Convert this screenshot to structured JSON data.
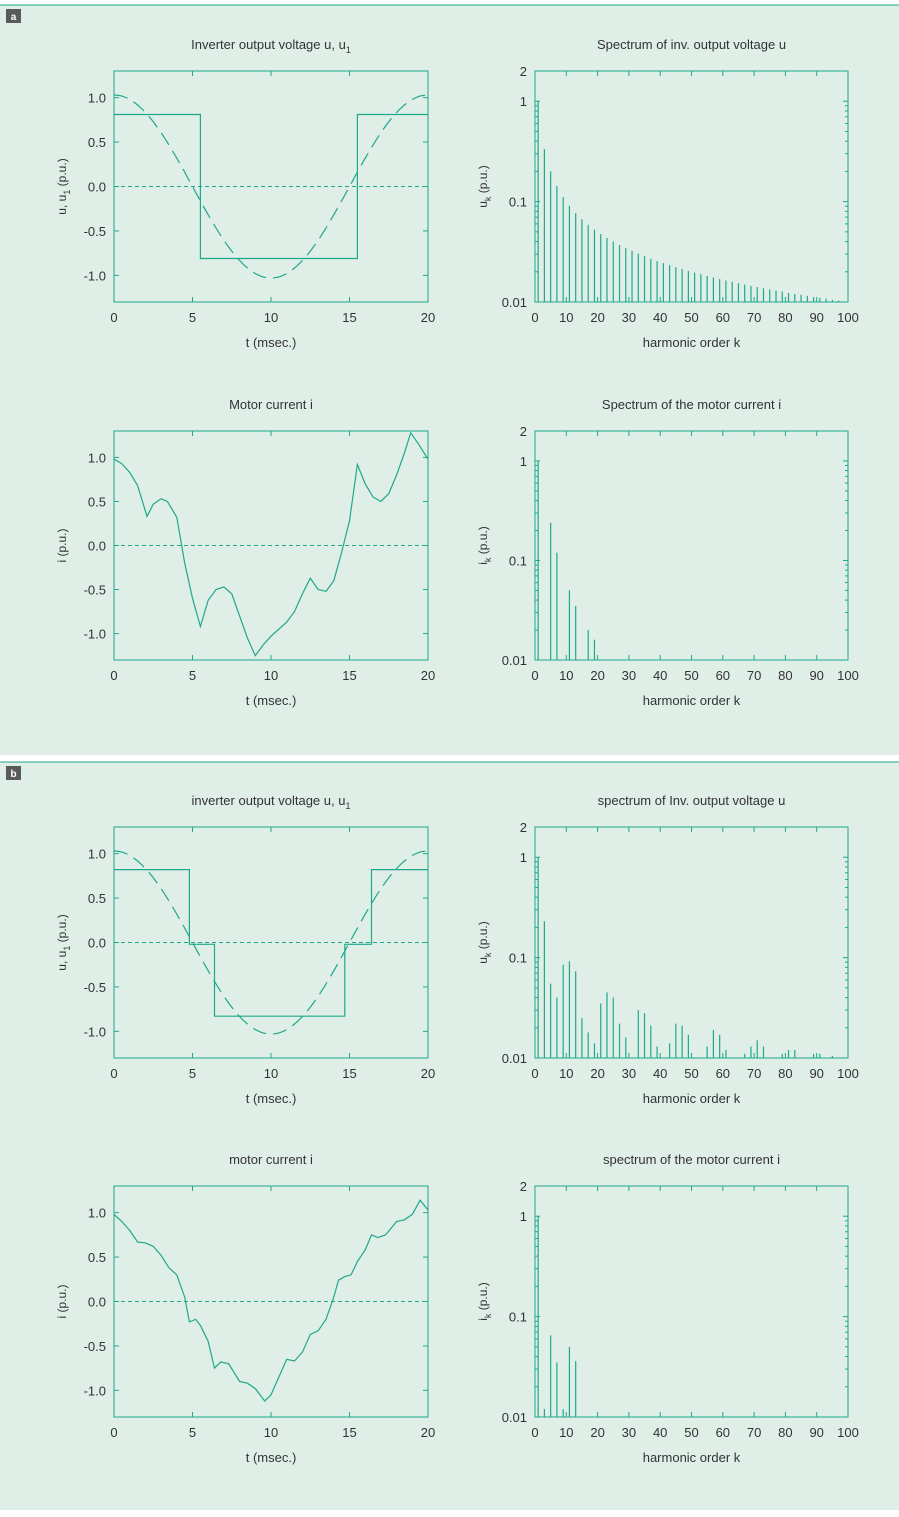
{
  "colors": {
    "background": "#dfeee7",
    "line": "#1fa88c",
    "text": "#333333",
    "tag_bg": "#5a5a5a",
    "tag_text": "#ffffff"
  },
  "panels": [
    {
      "tag": "a"
    },
    {
      "tag": "b"
    }
  ],
  "chart_data": [
    {
      "panel": "a",
      "type": "line",
      "title": "Inverter output voltage u, u",
      "title_sub": "1",
      "xlabel": "t (msec.)",
      "ylabel": "u, u",
      "ylabel_sub": "1",
      "ylabel_suffix": " (p.u.)",
      "xlim": [
        0,
        20
      ],
      "ylim": [
        -1.3,
        1.3
      ],
      "xticks": [
        0,
        5,
        10,
        15,
        20
      ],
      "yticks": [
        1.0,
        0.5,
        0.0,
        -0.5,
        -1.0
      ],
      "ytick_labels": [
        "1.0",
        "0.5",
        "0.0",
        "-0.5",
        "-1.0"
      ],
      "series": [
        {
          "style": "solid",
          "x": [
            0,
            5.5,
            5.5,
            15.5,
            15.5,
            20
          ],
          "y": [
            0.81,
            0.81,
            -0.81,
            -0.81,
            0.81,
            0.81
          ]
        },
        {
          "style": "dashed",
          "function": "cos",
          "amplitude": 1.03,
          "period_ms": 20,
          "x_range": [
            0,
            20
          ]
        }
      ],
      "zero_line": true
    },
    {
      "panel": "a",
      "type": "bar",
      "log_y": true,
      "title": "Spectrum of inv. output voltage u",
      "xlabel": "harmonic order k",
      "ylabel": "u",
      "ylabel_sub": "k",
      "ylabel_suffix": " (p.u.)",
      "xlim": [
        0,
        100
      ],
      "ylim": [
        0.01,
        2
      ],
      "xticks": [
        0,
        10,
        20,
        30,
        40,
        50,
        60,
        70,
        80,
        90,
        100
      ],
      "yticks": [
        2,
        1,
        0.1,
        0.01
      ],
      "ytick_labels": [
        "2",
        "1",
        "0.1",
        "0.01"
      ],
      "k": [
        1,
        3,
        5,
        7,
        9,
        11,
        13,
        15,
        17,
        19,
        21,
        23,
        25,
        27,
        29,
        31,
        33,
        35,
        37,
        39,
        41,
        43,
        45,
        47,
        49,
        51,
        53,
        55,
        57,
        59,
        61,
        63,
        65,
        67,
        69,
        71,
        73,
        75,
        77,
        79,
        81,
        83,
        85,
        87,
        89,
        91,
        93,
        95,
        97,
        99
      ],
      "values": [
        1.0,
        0.333,
        0.2,
        0.143,
        0.111,
        0.0909,
        0.0769,
        0.0667,
        0.0588,
        0.0526,
        0.0476,
        0.0435,
        0.04,
        0.037,
        0.0345,
        0.0323,
        0.0303,
        0.0286,
        0.027,
        0.0256,
        0.0244,
        0.0233,
        0.0222,
        0.0213,
        0.0204,
        0.0196,
        0.0189,
        0.0182,
        0.0175,
        0.0169,
        0.0164,
        0.0159,
        0.0154,
        0.0149,
        0.0145,
        0.0141,
        0.0137,
        0.0133,
        0.013,
        0.0127,
        0.0123,
        0.012,
        0.0118,
        0.0115,
        0.0112,
        0.011,
        0.0108,
        0.0105,
        0.0103,
        0.0101
      ]
    },
    {
      "panel": "a",
      "type": "line",
      "title": "Motor current i",
      "xlabel": "t (msec.)",
      "ylabel": "i (p.u.)",
      "xlim": [
        0,
        20
      ],
      "ylim": [
        -1.3,
        1.3
      ],
      "xticks": [
        0,
        5,
        10,
        15,
        20
      ],
      "yticks": [
        1.0,
        0.5,
        0.0,
        -0.5,
        -1.0
      ],
      "ytick_labels": [
        "1.0",
        "0.5",
        "0.0",
        "-0.5",
        "-1.0"
      ],
      "series": [
        {
          "style": "solid",
          "x": [
            0,
            0.5,
            1.0,
            1.5,
            2.1,
            2.5,
            3.0,
            3.4,
            4.0,
            4.5,
            5.0,
            5.5,
            6.0,
            6.5,
            7.0,
            7.5,
            8.0,
            8.5,
            9.0,
            9.5,
            10.0,
            11.0,
            11.5,
            12.0,
            12.5,
            13.0,
            13.5,
            14.0,
            14.5,
            15.0,
            15.5,
            16.0,
            16.5,
            17.0,
            17.5,
            18.0,
            18.5,
            18.9,
            19.4,
            20.0
          ],
          "y": [
            0.98,
            0.93,
            0.83,
            0.68,
            0.33,
            0.47,
            0.53,
            0.5,
            0.32,
            -0.2,
            -0.6,
            -0.92,
            -0.62,
            -0.5,
            -0.47,
            -0.55,
            -0.8,
            -1.05,
            -1.25,
            -1.13,
            -1.03,
            -0.87,
            -0.75,
            -0.55,
            -0.37,
            -0.5,
            -0.52,
            -0.4,
            -0.08,
            0.28,
            0.92,
            0.7,
            0.55,
            0.5,
            0.59,
            0.8,
            1.05,
            1.28,
            1.15,
            0.98
          ]
        }
      ],
      "zero_line": true
    },
    {
      "panel": "a",
      "type": "bar",
      "log_y": true,
      "title": "Spectrum of the motor current i",
      "xlabel": "harmonic order k",
      "ylabel": "i",
      "ylabel_sub": "k",
      "ylabel_suffix": " (p.u.)",
      "xlim": [
        0,
        100
      ],
      "ylim": [
        0.01,
        2
      ],
      "xticks": [
        0,
        10,
        20,
        30,
        40,
        50,
        60,
        70,
        80,
        90,
        100
      ],
      "yticks": [
        2,
        1,
        0.1,
        0.01
      ],
      "ytick_labels": [
        "2",
        "1",
        "0.1",
        "0.01"
      ],
      "k": [
        1,
        5,
        7,
        11,
        13,
        17,
        19
      ],
      "values": [
        1.0,
        0.24,
        0.12,
        0.05,
        0.035,
        0.02,
        0.016
      ]
    },
    {
      "panel": "b",
      "type": "line",
      "title": "inverter output voltage u, u",
      "title_sub": "1",
      "xlabel": "t (msec.)",
      "ylabel": "u, u",
      "ylabel_sub": "1",
      "ylabel_suffix": " (p.u.)",
      "xlim": [
        0,
        20
      ],
      "ylim": [
        -1.3,
        1.3
      ],
      "xticks": [
        0,
        5,
        10,
        15,
        20
      ],
      "yticks": [
        1.0,
        0.5,
        0.0,
        -0.5,
        -1.0
      ],
      "ytick_labels": [
        "1.0",
        "0.5",
        "0.0",
        "-0.5",
        "-1.0"
      ],
      "series": [
        {
          "style": "solid",
          "x": [
            0,
            4.8,
            4.8,
            6.4,
            6.4,
            14.7,
            14.7,
            16.4,
            16.4,
            20
          ],
          "y": [
            0.82,
            0.82,
            -0.02,
            -0.02,
            -0.83,
            -0.83,
            -0.02,
            -0.02,
            0.82,
            0.82
          ]
        },
        {
          "style": "dashed",
          "function": "cos",
          "amplitude": 1.03,
          "period_ms": 20,
          "x_range": [
            0,
            20
          ]
        }
      ],
      "zero_line": true
    },
    {
      "panel": "b",
      "type": "bar",
      "log_y": true,
      "title": "spectrum of Inv. output voltage u",
      "xlabel": "harmonic order k",
      "ylabel": "u",
      "ylabel_sub": "k",
      "ylabel_suffix": " (p.u.)",
      "xlim": [
        0,
        100
      ],
      "ylim": [
        0.01,
        2
      ],
      "xticks": [
        0,
        10,
        20,
        30,
        40,
        50,
        60,
        70,
        80,
        90,
        100
      ],
      "yticks": [
        2,
        1,
        0.1,
        0.01
      ],
      "ytick_labels": [
        "2",
        "1",
        "0.1",
        "0.01"
      ],
      "k": [
        1,
        3,
        5,
        7,
        9,
        11,
        13,
        15,
        17,
        19,
        21,
        23,
        25,
        27,
        29,
        33,
        35,
        37,
        39,
        43,
        45,
        47,
        49,
        55,
        57,
        59,
        61,
        67,
        69,
        71,
        73,
        79,
        81,
        83,
        89,
        91,
        95
      ],
      "values": [
        1.0,
        0.23,
        0.055,
        0.04,
        0.085,
        0.092,
        0.073,
        0.025,
        0.018,
        0.014,
        0.035,
        0.045,
        0.04,
        0.022,
        0.016,
        0.03,
        0.028,
        0.021,
        0.013,
        0.014,
        0.022,
        0.021,
        0.017,
        0.013,
        0.019,
        0.017,
        0.012,
        0.011,
        0.013,
        0.015,
        0.013,
        0.011,
        0.012,
        0.012,
        0.011,
        0.011,
        0.0105
      ]
    },
    {
      "panel": "b",
      "type": "line",
      "title": "motor current i",
      "xlabel": "t (msec.)",
      "ylabel": "i (p.u.)",
      "xlim": [
        0,
        20
      ],
      "ylim": [
        -1.3,
        1.3
      ],
      "xticks": [
        0,
        5,
        10,
        15,
        20
      ],
      "yticks": [
        1.0,
        0.5,
        0.0,
        -0.5,
        -1.0
      ],
      "ytick_labels": [
        "1.0",
        "0.5",
        "0.0",
        "-0.5",
        "-1.0"
      ],
      "series": [
        {
          "style": "solid",
          "x": [
            0,
            0.5,
            1.0,
            1.5,
            2.0,
            2.5,
            3.0,
            3.5,
            4.0,
            4.5,
            4.8,
            5.2,
            5.5,
            6.0,
            6.4,
            6.8,
            7.3,
            8.0,
            8.5,
            9.0,
            9.6,
            10.0,
            10.5,
            11.0,
            11.5,
            12.0,
            12.5,
            13.0,
            13.5,
            14.0,
            14.3,
            14.7,
            15.1,
            15.5,
            16.0,
            16.4,
            16.8,
            17.3,
            18.0,
            18.5,
            19.0,
            19.5,
            20.0
          ],
          "y": [
            0.98,
            0.9,
            0.8,
            0.67,
            0.66,
            0.62,
            0.52,
            0.38,
            0.3,
            0.05,
            -0.23,
            -0.2,
            -0.27,
            -0.45,
            -0.75,
            -0.68,
            -0.7,
            -0.9,
            -0.92,
            -0.98,
            -1.12,
            -1.05,
            -0.85,
            -0.65,
            -0.67,
            -0.57,
            -0.37,
            -0.33,
            -0.2,
            0.05,
            0.24,
            0.28,
            0.3,
            0.45,
            0.58,
            0.75,
            0.72,
            0.75,
            0.9,
            0.92,
            0.98,
            1.14,
            1.03
          ]
        }
      ],
      "zero_line": true
    },
    {
      "panel": "b",
      "type": "bar",
      "log_y": true,
      "title": "spectrum of the motor current i",
      "xlabel": "harmonic order k",
      "ylabel": "i",
      "ylabel_sub": "k",
      "ylabel_suffix": " (p.u.)",
      "xlim": [
        0,
        100
      ],
      "ylim": [
        0.01,
        2
      ],
      "xticks": [
        0,
        10,
        20,
        30,
        40,
        50,
        60,
        70,
        80,
        90,
        100
      ],
      "yticks": [
        2,
        1,
        0.1,
        0.01
      ],
      "ytick_labels": [
        "2",
        "1",
        "0.1",
        "0.01"
      ],
      "k": [
        1,
        3,
        5,
        7,
        9,
        11,
        13
      ],
      "values": [
        1.0,
        0.012,
        0.065,
        0.035,
        0.012,
        0.05,
        0.036
      ]
    }
  ]
}
